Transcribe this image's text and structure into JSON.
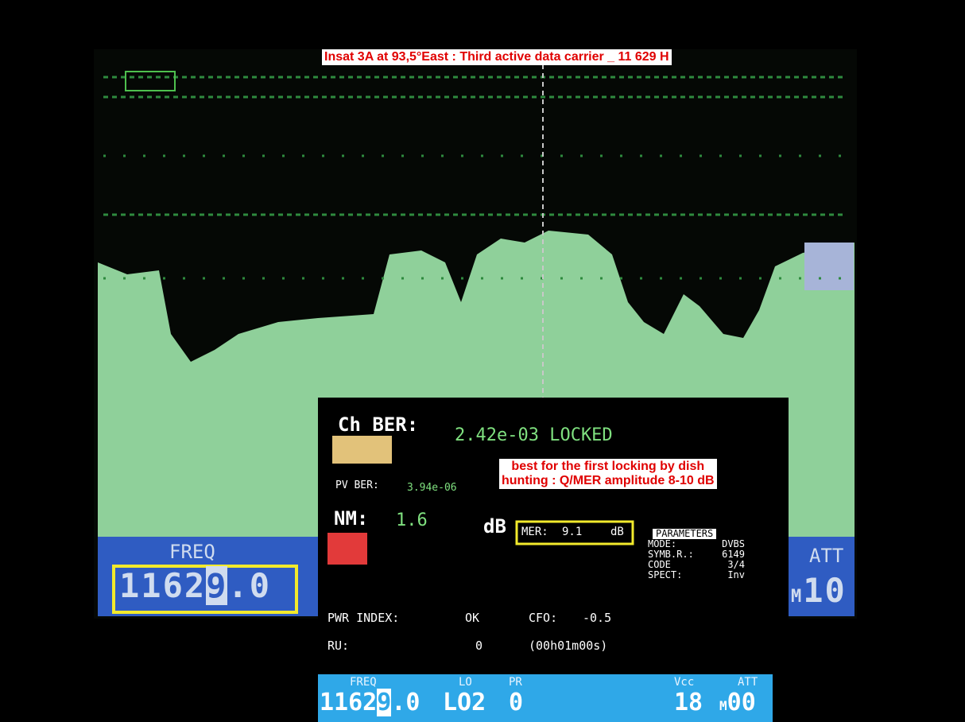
{
  "annotation_top": "Insat 3A at 93,5°East : Third active data carrier _ 11 629 H",
  "main_screen": {
    "freq_label": "FREQ",
    "freq": {
      "before": "1162",
      "cursor": "9",
      "after": ".0"
    },
    "att_label": "ATT",
    "att_prefix": "M",
    "att": "10"
  },
  "overlay": {
    "ch_ber_label": "Ch BER:",
    "ch_ber": "2.42e-03 LOCKED",
    "pv_ber_label": "PV BER:",
    "pv_ber": "3.94e-06",
    "nm_label": "NM:",
    "nm": "1.6",
    "nm_unit": "dB",
    "mer_label": "MER:",
    "mer": "9.1",
    "mer_unit": "dB",
    "annotation": [
      "best for the first locking by dish",
      "hunting : Q/MER amplitude 8-10 dB"
    ],
    "parameters": {
      "title": "PARAMETERS",
      "rows": [
        [
          "MODE:",
          "DVBS"
        ],
        [
          "SYMB.R.:",
          "6149"
        ],
        [
          "CODE",
          "3/4"
        ],
        [
          "SPECT:",
          "Inv"
        ]
      ]
    },
    "pwr_index_label": "PWR INDEX:",
    "pwr_index": "OK",
    "cfo_label": "CFO:",
    "cfo": "-0.5",
    "ru_label": "RU:",
    "ru": "0",
    "ru_time": "(00h01m00s)",
    "bar": {
      "labels": [
        "FREQ",
        "LO",
        "PR",
        "Vcc",
        "ATT"
      ],
      "freq": {
        "before": "1162",
        "cursor": "9",
        "after": ".0"
      },
      "lo": "LO2",
      "pr": "0",
      "vcc": "18",
      "att_prefix": "M",
      "att": "00"
    }
  }
}
